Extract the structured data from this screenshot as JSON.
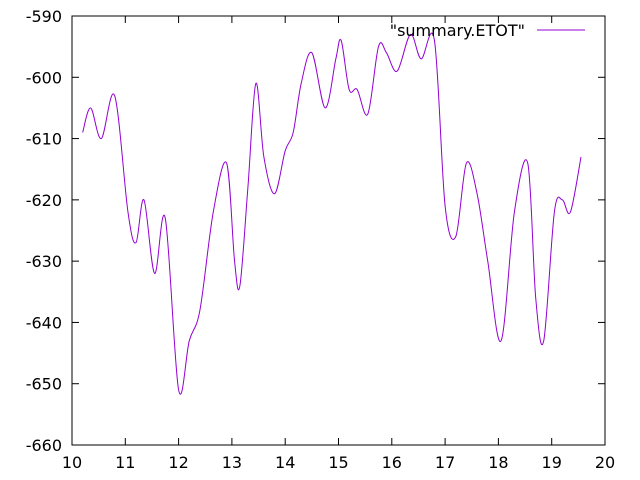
{
  "chart_data": {
    "type": "line",
    "xlim": [
      10,
      20
    ],
    "ylim": [
      -660,
      -590
    ],
    "x_ticks": [
      "10",
      "11",
      "12",
      "13",
      "14",
      "15",
      "16",
      "17",
      "18",
      "19",
      "20"
    ],
    "y_ticks": [
      "-590",
      "-600",
      "-610",
      "-620",
      "-630",
      "-640",
      "-650",
      "-660"
    ],
    "grid": false,
    "legend_position": "top-right",
    "series": [
      {
        "name": "\"summary.ETOT\"",
        "color": "#9400d3",
        "x": [
          10.2,
          10.35,
          10.55,
          10.8,
          11.05,
          11.2,
          11.35,
          11.55,
          11.75,
          12.0,
          12.2,
          12.4,
          12.65,
          12.9,
          13.05,
          13.15,
          13.3,
          13.45,
          13.6,
          13.8,
          14.0,
          14.15,
          14.3,
          14.5,
          14.75,
          14.95,
          15.05,
          15.2,
          15.35,
          15.55,
          15.75,
          15.9,
          16.1,
          16.35,
          16.55,
          16.8,
          17.0,
          17.2,
          17.4,
          17.6,
          17.8,
          18.05,
          18.3,
          18.55,
          18.7,
          18.85,
          19.05,
          19.2,
          19.35,
          19.55
        ],
        "y": [
          -609,
          -605,
          -610,
          -603,
          -622,
          -627,
          -620,
          -632,
          -623,
          -651,
          -643,
          -638,
          -622,
          -614,
          -630,
          -634,
          -618,
          -601,
          -613,
          -619,
          -612,
          -609,
          -601,
          -596,
          -605,
          -597,
          -594,
          -602,
          -602,
          -606,
          -595,
          -596,
          -599,
          -593,
          -597,
          -594,
          -621,
          -626,
          -614,
          -619,
          -630,
          -643,
          -622,
          -614,
          -636,
          -643,
          -622,
          -620,
          -622,
          -613
        ]
      }
    ]
  }
}
